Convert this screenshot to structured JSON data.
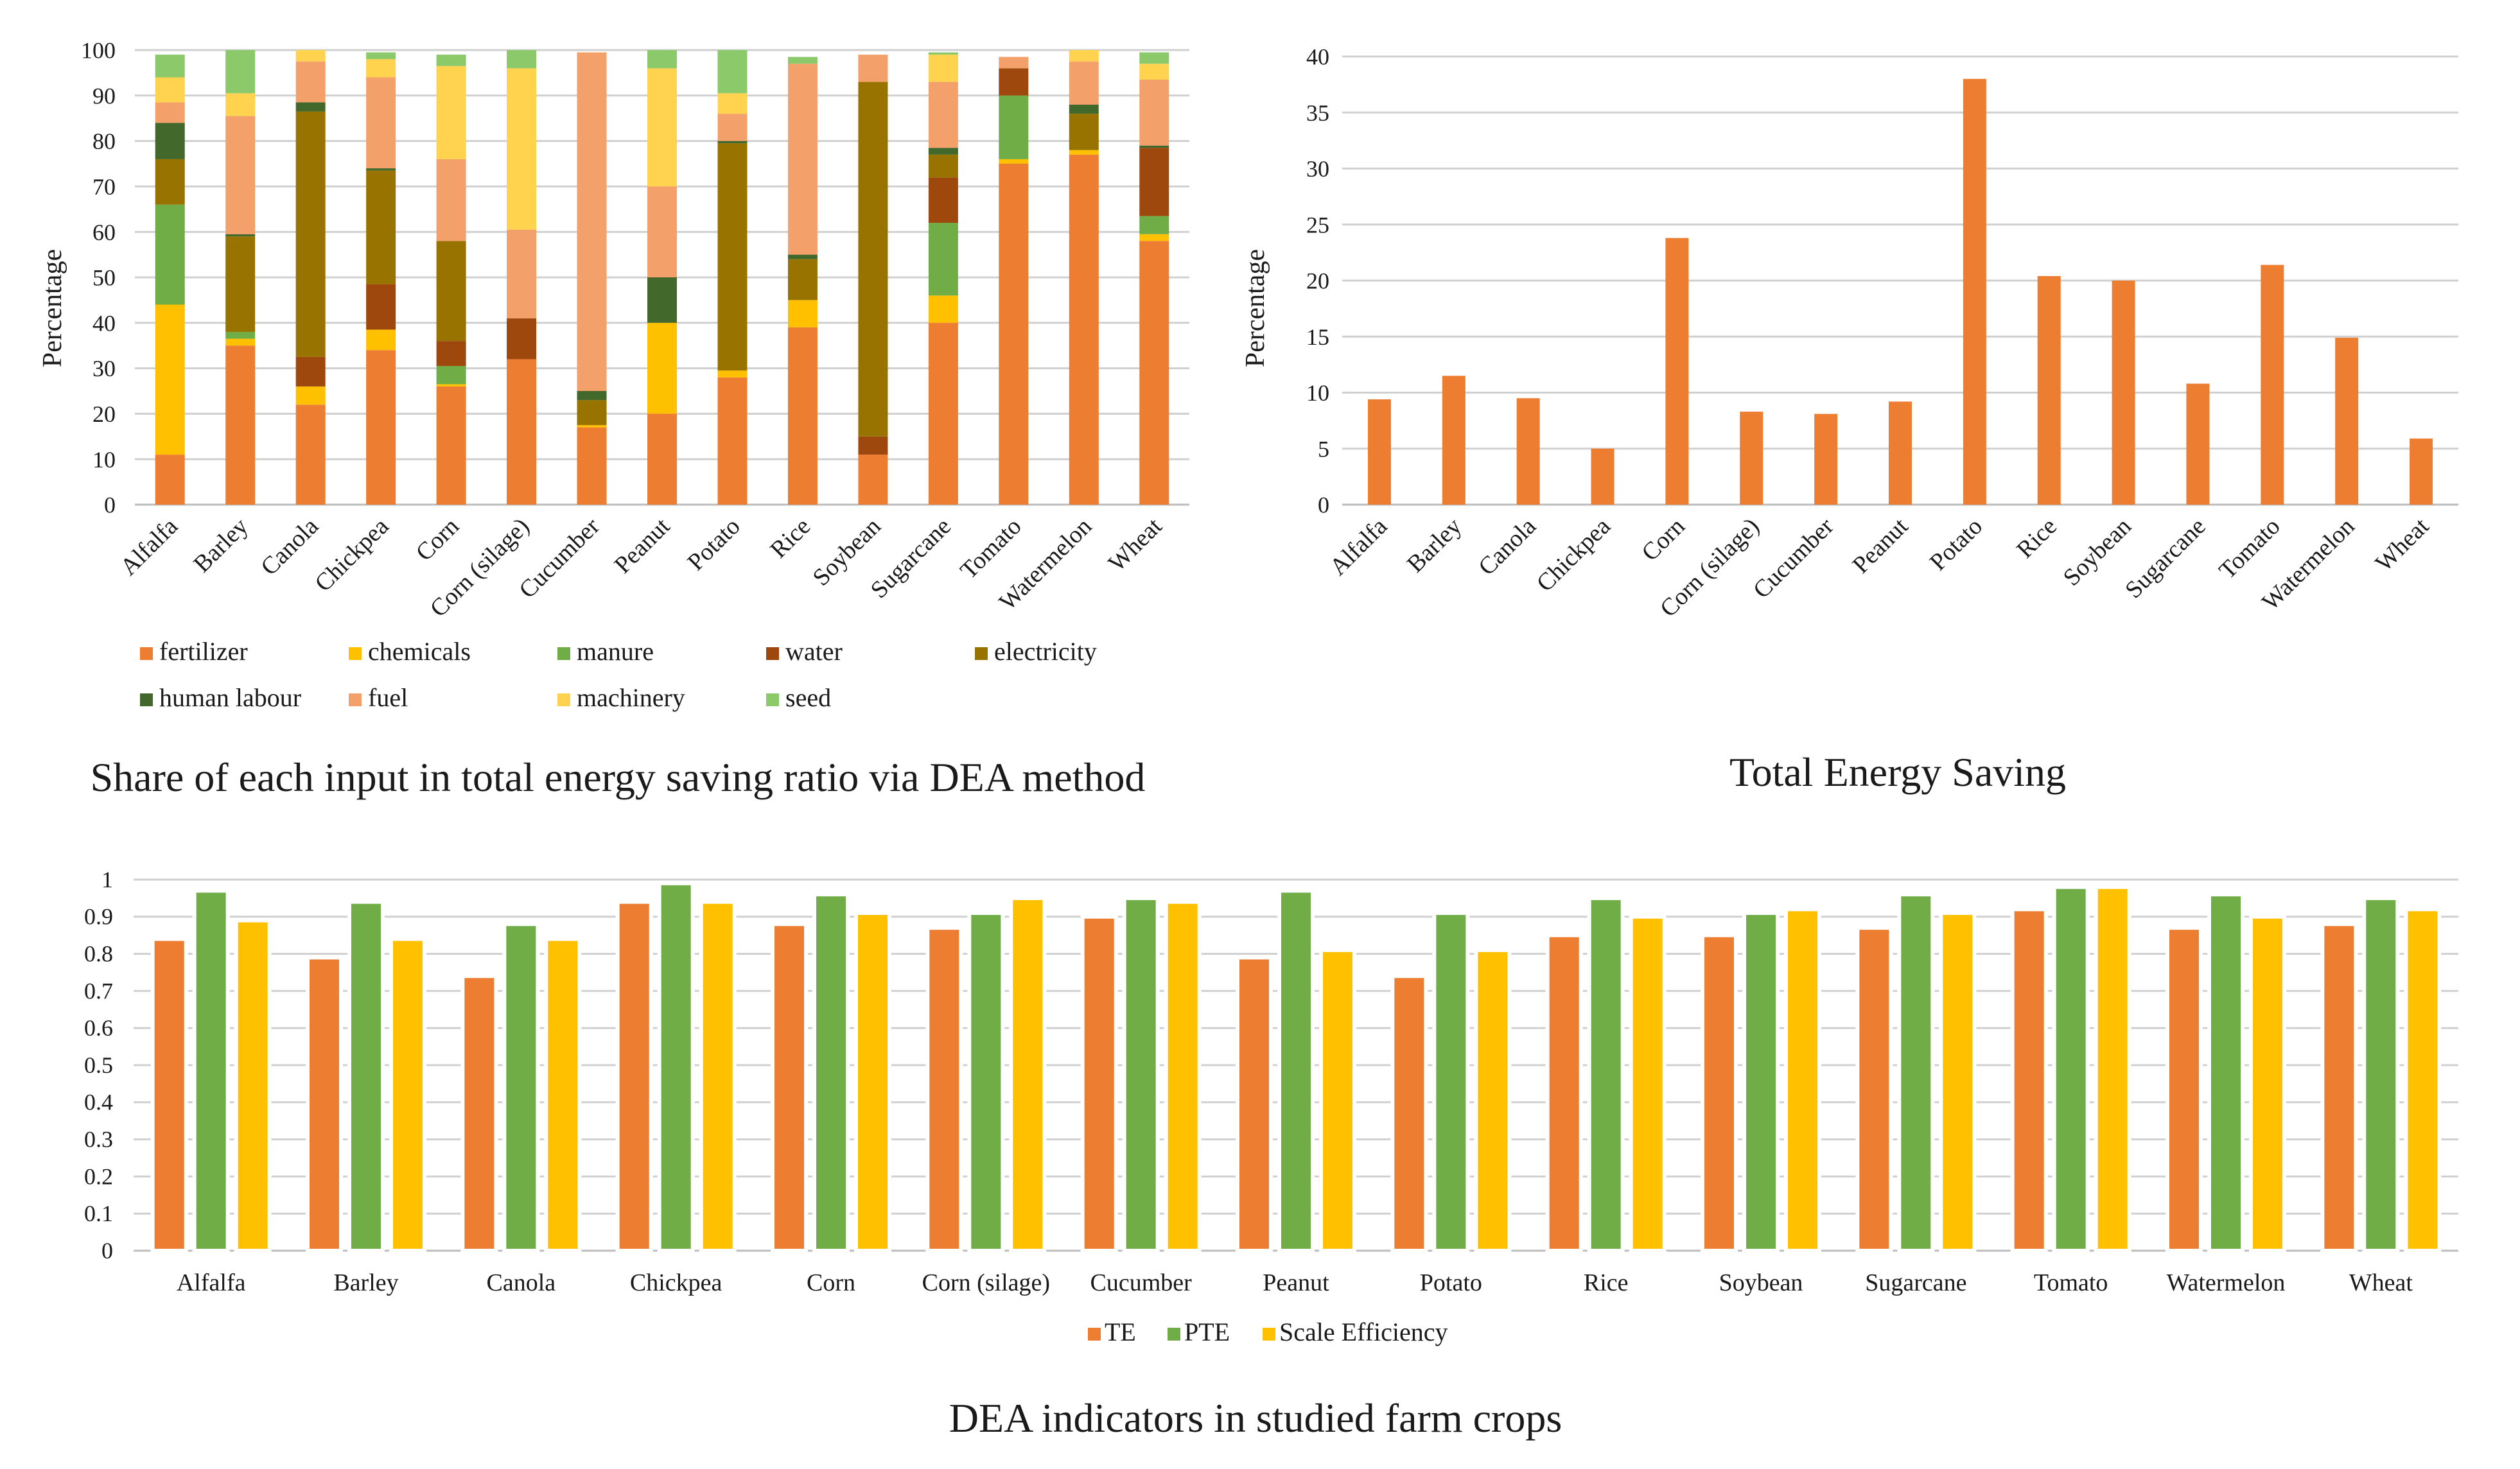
{
  "chart_data": [
    {
      "type": "bar",
      "stacked": true,
      "title": "Share of each input in total energy saving ratio via DEA method",
      "ylabel": "Percentage",
      "xlabel": "",
      "ylim": [
        0,
        100
      ],
      "yticks": [
        "0",
        "10",
        "20",
        "30",
        "40",
        "50",
        "60",
        "70",
        "80",
        "90",
        "100"
      ],
      "grid": true,
      "legend_position": "bottom",
      "categories": [
        "Alfalfa",
        "Barley",
        "Canola",
        "Chickpea",
        "Corn",
        "Corn (silage)",
        "Cucumber",
        "Peanut",
        "Potato",
        "Rice",
        "Soybean",
        "Sugarcane",
        "Tomato",
        "Watermelon",
        "Wheat"
      ],
      "series": [
        {
          "name": "fertilizer",
          "color": "#ED7D31",
          "values": [
            11,
            35,
            22,
            34,
            26,
            32,
            17,
            20,
            28,
            39,
            11,
            40,
            75,
            77,
            58
          ]
        },
        {
          "name": "chemicals",
          "color": "#FFC000",
          "values": [
            33,
            1.5,
            4,
            4.5,
            0.5,
            0,
            0.5,
            20,
            1.5,
            6,
            0,
            6,
            1,
            1,
            1.5
          ]
        },
        {
          "name": "manure",
          "color": "#70AD47",
          "values": [
            22,
            1.5,
            0,
            0,
            4,
            0,
            0,
            0,
            0,
            0,
            0,
            16,
            14,
            0,
            4
          ]
        },
        {
          "name": "water",
          "color": "#9E480E",
          "values": [
            0,
            0,
            6.5,
            10,
            5.5,
            9,
            0,
            0,
            0,
            0,
            4,
            10,
            6,
            0,
            15
          ]
        },
        {
          "name": "electricity",
          "color": "#997300",
          "values": [
            10,
            21,
            54,
            25,
            22,
            0,
            5.5,
            0,
            50,
            9,
            78,
            5,
            0,
            8,
            0
          ]
        },
        {
          "name": "human labour",
          "color": "#43682B",
          "values": [
            8,
            0.5,
            2,
            0.5,
            0,
            0,
            2,
            10,
            0.5,
            1,
            0,
            1.5,
            0,
            2,
            0.5
          ]
        },
        {
          "name": "fuel",
          "color": "#F4A06A",
          "values": [
            4.5,
            26,
            9,
            20,
            18,
            19.5,
            74.5,
            20,
            6,
            42,
            6,
            14.5,
            2.5,
            9.5,
            14.5
          ]
        },
        {
          "name": "machinery",
          "color": "#FFD34D",
          "values": [
            5.5,
            5,
            2.5,
            4,
            20.5,
            35.5,
            0,
            26,
            4.5,
            0,
            0,
            6,
            0,
            2.5,
            3.5
          ]
        },
        {
          "name": "seed",
          "color": "#8BC96B",
          "values": [
            5,
            9.5,
            0,
            1.5,
            2.5,
            4,
            0,
            4,
            9.5,
            1.5,
            0,
            0.5,
            0,
            0,
            2.5
          ]
        }
      ]
    },
    {
      "type": "bar",
      "title": "Total Energy Saving",
      "ylabel": "Percentage",
      "xlabel": "",
      "ylim": [
        0,
        40
      ],
      "yticks": [
        "0",
        "5",
        "10",
        "15",
        "20",
        "25",
        "30",
        "35",
        "40"
      ],
      "grid": true,
      "categories": [
        "Alfalfa",
        "Barley",
        "Canola",
        "Chickpea",
        "Corn",
        "Corn (silage)",
        "Cucumber",
        "Peanut",
        "Potato",
        "Rice",
        "Soybean",
        "Sugarcane",
        "Tomato",
        "Watermelon",
        "Wheat"
      ],
      "series": [
        {
          "name": "Total Energy Saving",
          "color": "#ED7D31",
          "values": [
            9.4,
            11.5,
            9.5,
            5.0,
            23.8,
            8.3,
            8.1,
            9.2,
            38.0,
            20.4,
            20.0,
            10.8,
            21.4,
            14.9,
            5.9
          ]
        }
      ]
    },
    {
      "type": "bar",
      "title": "DEA indicators in studied farm crops",
      "ylabel": "",
      "xlabel": "",
      "ylim": [
        0,
        1
      ],
      "yticks": [
        "0",
        "0.1",
        "0.2",
        "0.3",
        "0.4",
        "0.5",
        "0.6",
        "0.7",
        "0.8",
        "0.9",
        "1"
      ],
      "grid": true,
      "legend_position": "bottom",
      "categories": [
        "Alfalfa",
        "Barley",
        "Canola",
        "Chickpea",
        "Corn",
        "Corn (silage)",
        "Cucumber",
        "Peanut",
        "Potato",
        "Rice",
        "Soybean",
        "Sugarcane",
        "Tomato",
        "Watermelon",
        "Wheat"
      ],
      "series": [
        {
          "name": "TE",
          "color": "#ED7D31",
          "values": [
            0.84,
            0.79,
            0.74,
            0.94,
            0.88,
            0.87,
            0.9,
            0.79,
            0.74,
            0.85,
            0.85,
            0.87,
            0.92,
            0.87,
            0.88
          ]
        },
        {
          "name": "PTE",
          "color": "#70AD47",
          "values": [
            0.97,
            0.94,
            0.88,
            0.99,
            0.96,
            0.91,
            0.95,
            0.97,
            0.91,
            0.95,
            0.91,
            0.96,
            0.98,
            0.96,
            0.95
          ]
        },
        {
          "name": "Scale Efficiency",
          "color": "#FFC000",
          "values": [
            0.89,
            0.84,
            0.84,
            0.94,
            0.91,
            0.95,
            0.94,
            0.81,
            0.81,
            0.9,
            0.92,
            0.91,
            0.98,
            0.9,
            0.92
          ]
        }
      ]
    }
  ]
}
